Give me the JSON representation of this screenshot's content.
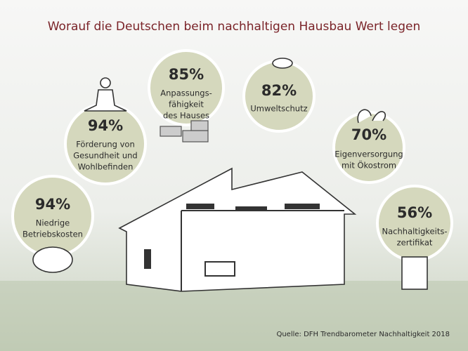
{
  "title": "Worauf die Deutschen beim nachhaltigen Hausbau Wert legen",
  "items": [
    {
      "value_label": "94%",
      "label": [
        "Förderung von",
        "Gesundheit und",
        "Wohlbefinden"
      ]
    },
    {
      "value_label": "85%",
      "label": [
        "Anpassungs-",
        "fähigkeit",
        "des Hauses"
      ]
    },
    {
      "value_label": "82%",
      "label": [
        "Umweltschutz"
      ]
    },
    {
      "value_label": "70%",
      "label": [
        "Eigenversorgung",
        "mit Ökostrom"
      ]
    },
    {
      "value_label": "94%",
      "label": [
        "Niedrige",
        "Betriebskosten"
      ]
    },
    {
      "value_label": "56%",
      "label": [
        "Nachhaltigkeits-",
        "zertifikat"
      ]
    }
  ],
  "source": "Quelle: DFH Trendbarometer Nachhaltigkeit 2018"
}
